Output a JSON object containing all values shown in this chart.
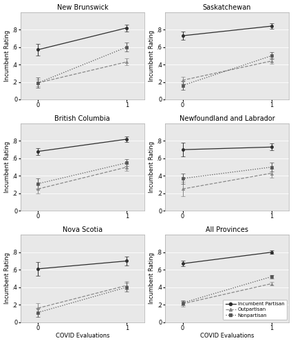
{
  "panels": [
    {
      "title": "New Brunswick",
      "row": 0,
      "col": 0,
      "lines": [
        {
          "label": "Incumbent Partisan",
          "x": [
            0,
            1
          ],
          "y": [
            0.57,
            0.82
          ],
          "yerr": [
            0.07,
            0.04
          ],
          "style": "solid",
          "marker": "o",
          "color": "#2d2d2d"
        },
        {
          "label": "Outpartisan",
          "x": [
            0,
            1
          ],
          "y": [
            0.19,
            0.43
          ],
          "yerr": [
            0.04,
            0.04
          ],
          "style": "dashed",
          "marker": "^",
          "color": "#888888"
        },
        {
          "label": "Nonpartisan",
          "x": [
            0,
            1
          ],
          "y": [
            0.19,
            0.6
          ],
          "yerr": [
            0.06,
            0.05
          ],
          "style": "dotted",
          "marker": "s",
          "color": "#555555"
        }
      ],
      "ylim": [
        0,
        1.0
      ],
      "yticks": [
        0,
        0.2,
        0.4,
        0.6,
        0.8
      ]
    },
    {
      "title": "Saskatchewan",
      "row": 0,
      "col": 1,
      "lines": [
        {
          "label": "Incumbent Partisan",
          "x": [
            0,
            1
          ],
          "y": [
            0.73,
            0.84
          ],
          "yerr": [
            0.05,
            0.03
          ],
          "style": "solid",
          "marker": "o",
          "color": "#2d2d2d"
        },
        {
          "label": "Outpartisan",
          "x": [
            0,
            1
          ],
          "y": [
            0.22,
            0.44
          ],
          "yerr": [
            0.04,
            0.03
          ],
          "style": "dashed",
          "marker": "^",
          "color": "#888888"
        },
        {
          "label": "Nonpartisan",
          "x": [
            0,
            1
          ],
          "y": [
            0.16,
            0.5
          ],
          "yerr": [
            0.05,
            0.04
          ],
          "style": "dotted",
          "marker": "s",
          "color": "#555555"
        }
      ],
      "ylim": [
        0,
        1.0
      ],
      "yticks": [
        0,
        0.2,
        0.4,
        0.6,
        0.8
      ]
    },
    {
      "title": "British Columbia",
      "row": 1,
      "col": 0,
      "lines": [
        {
          "label": "Incumbent Partisan",
          "x": [
            0,
            1
          ],
          "y": [
            0.68,
            0.82
          ],
          "yerr": [
            0.04,
            0.03
          ],
          "style": "solid",
          "marker": "o",
          "color": "#2d2d2d"
        },
        {
          "label": "Outpartisan",
          "x": [
            0,
            1
          ],
          "y": [
            0.25,
            0.5
          ],
          "yerr": [
            0.05,
            0.04
          ],
          "style": "dashed",
          "marker": "^",
          "color": "#888888"
        },
        {
          "label": "Nonpartisan",
          "x": [
            0,
            1
          ],
          "y": [
            0.31,
            0.55
          ],
          "yerr": [
            0.06,
            0.04
          ],
          "style": "dotted",
          "marker": "s",
          "color": "#555555"
        }
      ],
      "ylim": [
        0,
        1.0
      ],
      "yticks": [
        0,
        0.2,
        0.4,
        0.6,
        0.8
      ]
    },
    {
      "title": "Newfoundland and Labrador",
      "row": 1,
      "col": 1,
      "lines": [
        {
          "label": "Incumbent Partisan",
          "x": [
            0,
            1
          ],
          "y": [
            0.7,
            0.73
          ],
          "yerr": [
            0.08,
            0.04
          ],
          "style": "solid",
          "marker": "o",
          "color": "#2d2d2d"
        },
        {
          "label": "Outpartisan",
          "x": [
            0,
            1
          ],
          "y": [
            0.25,
            0.43
          ],
          "yerr": [
            0.08,
            0.05
          ],
          "style": "dashed",
          "marker": "^",
          "color": "#888888"
        },
        {
          "label": "Nonpartisan",
          "x": [
            0,
            1
          ],
          "y": [
            0.37,
            0.5
          ],
          "yerr": [
            0.06,
            0.05
          ],
          "style": "dotted",
          "marker": "s",
          "color": "#555555"
        }
      ],
      "ylim": [
        0,
        1.0
      ],
      "yticks": [
        0,
        0.2,
        0.4,
        0.6,
        0.8
      ]
    },
    {
      "title": "Nova Scotia",
      "row": 2,
      "col": 0,
      "lines": [
        {
          "label": "Incumbent Partisan",
          "x": [
            0,
            1
          ],
          "y": [
            0.61,
            0.7
          ],
          "yerr": [
            0.08,
            0.05
          ],
          "style": "solid",
          "marker": "o",
          "color": "#2d2d2d"
        },
        {
          "label": "Outpartisan",
          "x": [
            0,
            1
          ],
          "y": [
            0.16,
            0.42
          ],
          "yerr": [
            0.06,
            0.05
          ],
          "style": "dashed",
          "marker": "^",
          "color": "#888888"
        },
        {
          "label": "Nonpartisan",
          "x": [
            0,
            1
          ],
          "y": [
            0.11,
            0.4
          ],
          "yerr": [
            0.05,
            0.05
          ],
          "style": "dotted",
          "marker": "s",
          "color": "#555555"
        }
      ],
      "ylim": [
        0,
        1.0
      ],
      "yticks": [
        0,
        0.2,
        0.4,
        0.6,
        0.8
      ]
    },
    {
      "title": "All Provinces",
      "row": 2,
      "col": 1,
      "lines": [
        {
          "label": "Incumbent Partisan",
          "x": [
            0,
            1
          ],
          "y": [
            0.67,
            0.8
          ],
          "yerr": [
            0.03,
            0.02
          ],
          "style": "solid",
          "marker": "o",
          "color": "#2d2d2d"
        },
        {
          "label": "Outpartisan",
          "x": [
            0,
            1
          ],
          "y": [
            0.21,
            0.44
          ],
          "yerr": [
            0.03,
            0.02
          ],
          "style": "dashed",
          "marker": "^",
          "color": "#888888"
        },
        {
          "label": "Nonpartisan",
          "x": [
            0,
            1
          ],
          "y": [
            0.22,
            0.52
          ],
          "yerr": [
            0.03,
            0.02
          ],
          "style": "dotted",
          "marker": "s",
          "color": "#555555"
        }
      ],
      "ylim": [
        0,
        1.0
      ],
      "yticks": [
        0,
        0.2,
        0.4,
        0.6,
        0.8
      ],
      "show_legend": true
    }
  ],
  "xlabel": "COVID Evaluations",
  "ylabel": "Incumbent Rating",
  "xticks": [
    0,
    1
  ],
  "plot_bg": "#e8e8e8",
  "fig_bg": "#ffffff",
  "legend_labels": [
    "Incumbent Partisan",
    "Outpartisan",
    "Nonpartisan"
  ]
}
